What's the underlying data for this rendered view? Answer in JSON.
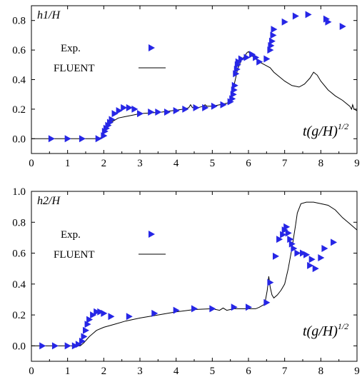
{
  "chart_data": [
    {
      "type": "scatter",
      "ylabel": "h1/H",
      "xlabel_main": "t(g/H)",
      "xlabel_sup": "1/2",
      "xlim": [
        0,
        9
      ],
      "ylim": [
        -0.1,
        0.9
      ],
      "xticks": [
        "0",
        "1",
        "2",
        "3",
        "4",
        "5",
        "6",
        "7",
        "8",
        "9"
      ],
      "yticks": [
        "0.0",
        "0.2",
        "0.4",
        "0.6",
        "0.8"
      ],
      "ytick_values": [
        0,
        0.2,
        0.4,
        0.6,
        0.8
      ],
      "legend": {
        "position": "upper-left",
        "exp_label": "Exp.",
        "fluent_label": "FLUENT"
      },
      "colors": {
        "exp": "#2626e6",
        "fluent": "#000000"
      },
      "series": [
        {
          "name": "Exp.",
          "kind": "markers",
          "x": [
            0.55,
            1.0,
            1.4,
            1.85,
            2.0,
            2.03,
            2.07,
            2.12,
            2.17,
            2.22,
            2.3,
            2.42,
            2.55,
            2.7,
            2.85,
            3.0,
            3.3,
            3.5,
            3.75,
            4.0,
            4.25,
            4.55,
            4.8,
            5.05,
            5.3,
            5.5,
            5.55,
            5.58,
            5.6,
            5.62,
            5.65,
            5.68,
            5.7,
            5.72,
            5.8,
            5.95,
            6.1,
            6.2,
            6.3,
            6.5,
            6.6,
            6.62,
            6.65,
            6.68,
            6.7,
            7.0,
            7.3,
            7.65,
            8.15,
            8.2,
            8.6
          ],
          "y": [
            0.0,
            0.0,
            0.0,
            0.0,
            0.02,
            0.05,
            0.07,
            0.09,
            0.11,
            0.13,
            0.17,
            0.19,
            0.21,
            0.21,
            0.2,
            0.17,
            0.18,
            0.18,
            0.18,
            0.19,
            0.2,
            0.21,
            0.21,
            0.22,
            0.23,
            0.25,
            0.27,
            0.3,
            0.33,
            0.36,
            0.44,
            0.47,
            0.5,
            0.52,
            0.54,
            0.55,
            0.57,
            0.55,
            0.52,
            0.54,
            0.6,
            0.63,
            0.66,
            0.7,
            0.74,
            0.79,
            0.83,
            0.84,
            0.81,
            0.79,
            0.76
          ]
        },
        {
          "name": "FLUENT",
          "kind": "line",
          "x": [
            0.0,
            1.85,
            1.95,
            2.05,
            2.2,
            2.4,
            2.6,
            2.8,
            3.0,
            3.3,
            3.6,
            3.9,
            4.2,
            4.35,
            4.4,
            4.45,
            4.6,
            4.75,
            4.8,
            4.85,
            5.0,
            5.2,
            5.4,
            5.5,
            5.55,
            5.6,
            5.7,
            5.8,
            5.9,
            5.95,
            6.0,
            6.05,
            6.15,
            6.3,
            6.45,
            6.6,
            6.7,
            6.8,
            7.0,
            7.2,
            7.4,
            7.55,
            7.7,
            7.8,
            7.9,
            8.0,
            8.2,
            8.4,
            8.6,
            8.8,
            8.85,
            8.88,
            8.92,
            9.0
          ],
          "y": [
            0.0,
            0.0,
            0.01,
            0.06,
            0.11,
            0.14,
            0.15,
            0.16,
            0.17,
            0.175,
            0.18,
            0.19,
            0.2,
            0.21,
            0.23,
            0.21,
            0.21,
            0.22,
            0.23,
            0.22,
            0.22,
            0.23,
            0.24,
            0.25,
            0.28,
            0.36,
            0.47,
            0.53,
            0.56,
            0.58,
            0.59,
            0.57,
            0.55,
            0.52,
            0.5,
            0.48,
            0.45,
            0.43,
            0.39,
            0.36,
            0.35,
            0.37,
            0.41,
            0.45,
            0.43,
            0.39,
            0.33,
            0.29,
            0.26,
            0.22,
            0.2,
            0.23,
            0.2,
            0.19
          ]
        }
      ]
    },
    {
      "type": "scatter",
      "ylabel": "h2/H",
      "xlabel_main": "t(g/H)",
      "xlabel_sup": "1/2",
      "xlim": [
        0,
        9
      ],
      "ylim": [
        -0.1,
        1.0
      ],
      "xticks": [
        "0",
        "1",
        "2",
        "3",
        "4",
        "5",
        "6",
        "7",
        "8",
        "9"
      ],
      "yticks": [
        "0.0",
        "0.2",
        "0.4",
        "0.6",
        "0.8",
        "1.0"
      ],
      "ytick_values": [
        0,
        0.2,
        0.4,
        0.6,
        0.8,
        1.0
      ],
      "legend": {
        "position": "upper-left",
        "exp_label": "Exp.",
        "fluent_label": "FLUENT"
      },
      "colors": {
        "exp": "#2626e6",
        "fluent": "#000000"
      },
      "series": [
        {
          "name": "Exp.",
          "kind": "markers",
          "x": [
            0.3,
            0.65,
            1.0,
            1.2,
            1.3,
            1.4,
            1.45,
            1.5,
            1.55,
            1.6,
            1.7,
            1.8,
            1.9,
            2.0,
            2.2,
            2.7,
            3.4,
            4.0,
            4.5,
            5.0,
            5.6,
            6.0,
            6.5,
            6.6,
            6.75,
            6.85,
            6.95,
            7.0,
            7.05,
            7.1,
            7.15,
            7.2,
            7.25,
            7.35,
            7.5,
            7.6,
            7.7,
            7.75,
            7.85,
            8.0,
            8.1,
            8.35
          ],
          "y": [
            0.0,
            0.0,
            0.0,
            0.0,
            0.01,
            0.03,
            0.06,
            0.1,
            0.14,
            0.17,
            0.2,
            0.22,
            0.22,
            0.21,
            0.19,
            0.19,
            0.21,
            0.23,
            0.24,
            0.24,
            0.25,
            0.25,
            0.28,
            0.41,
            0.58,
            0.69,
            0.72,
            0.75,
            0.77,
            0.73,
            0.69,
            0.66,
            0.63,
            0.6,
            0.6,
            0.59,
            0.52,
            0.56,
            0.5,
            0.57,
            0.63,
            0.67
          ]
        },
        {
          "name": "FLUENT",
          "kind": "line",
          "x": [
            0.0,
            1.35,
            1.45,
            1.6,
            1.8,
            2.0,
            2.3,
            2.6,
            3.0,
            3.5,
            4.0,
            4.5,
            5.0,
            5.2,
            5.3,
            5.4,
            5.6,
            5.8,
            6.0,
            6.2,
            6.3,
            6.45,
            6.52,
            6.56,
            6.6,
            6.65,
            6.7,
            6.8,
            6.9,
            7.0,
            7.1,
            7.2,
            7.3,
            7.35,
            7.45,
            7.6,
            7.8,
            8.0,
            8.2,
            8.4,
            8.6,
            8.8,
            9.0
          ],
          "y": [
            0.0,
            0.0,
            0.02,
            0.06,
            0.1,
            0.12,
            0.14,
            0.16,
            0.18,
            0.2,
            0.22,
            0.235,
            0.24,
            0.23,
            0.245,
            0.23,
            0.24,
            0.24,
            0.24,
            0.24,
            0.25,
            0.27,
            0.36,
            0.45,
            0.38,
            0.33,
            0.31,
            0.33,
            0.36,
            0.4,
            0.5,
            0.63,
            0.78,
            0.86,
            0.92,
            0.93,
            0.93,
            0.92,
            0.91,
            0.88,
            0.83,
            0.79,
            0.75
          ]
        }
      ]
    }
  ]
}
